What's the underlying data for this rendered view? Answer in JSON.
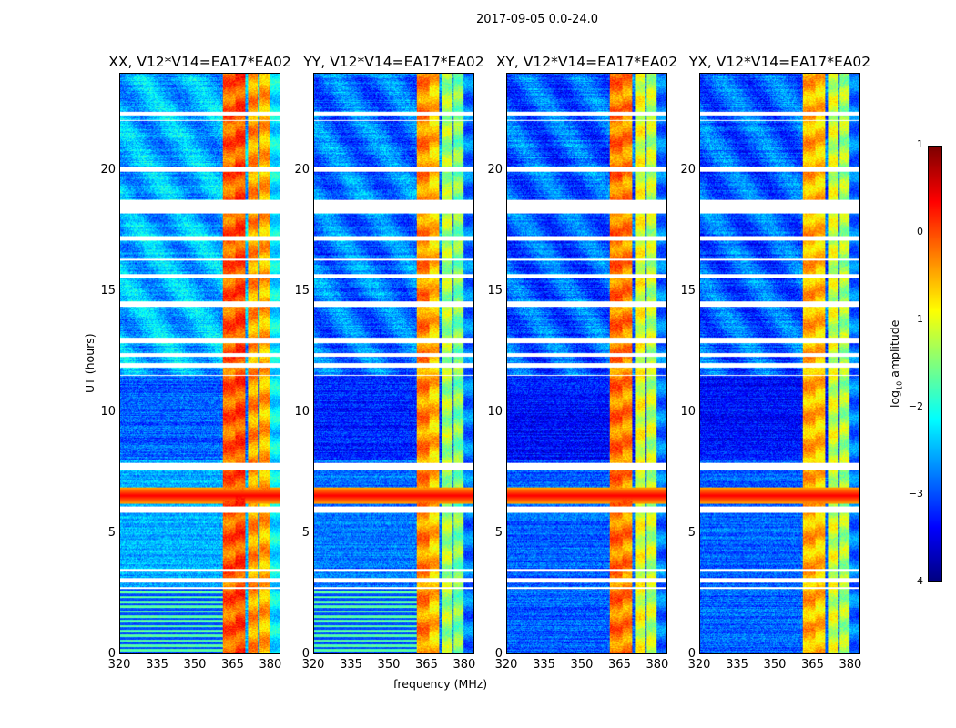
{
  "suptitle": "2017-09-05 0.0-24.0",
  "chart_data": {
    "type": "heatmap",
    "xlabel": "frequency (MHz)",
    "ylabel": "UT (hours)",
    "xlim": [
      320,
      384
    ],
    "ylim": [
      0,
      24
    ],
    "xticks": [
      "320",
      "335",
      "350",
      "365",
      "380"
    ],
    "xtick_values": [
      320,
      335,
      350,
      365,
      380
    ],
    "yticks": [
      "0",
      "5",
      "10",
      "15",
      "20"
    ],
    "ytick_values": [
      0,
      5,
      10,
      15,
      20
    ],
    "colorbar": {
      "label": "log10 amplitude",
      "label_main": "log",
      "label_sub": "10",
      "label_rest": " amplitude",
      "range": [
        -4,
        1
      ],
      "ticks": [
        "1",
        "0",
        "−1",
        "−2",
        "−3",
        "−4"
      ],
      "tick_values": [
        1,
        0,
        -1,
        -2,
        -3,
        -4
      ],
      "colormap": "jet"
    },
    "panels": [
      {
        "title": "XX, V12*V14=EA17*EA02",
        "background": -2.5,
        "low_stripes": true,
        "bands": [
          [
            361,
            366,
            -0.1
          ],
          [
            366,
            370,
            0.0
          ],
          [
            371,
            375,
            -0.4
          ],
          [
            376,
            380,
            -0.5
          ],
          [
            380,
            384,
            -2.2
          ]
        ]
      },
      {
        "title": "YY, V12*V14=EA17*EA02",
        "background": -2.8,
        "low_stripes": true,
        "bands": [
          [
            361,
            366,
            -0.3
          ],
          [
            366,
            370,
            -0.6
          ],
          [
            371,
            375,
            -1.3
          ],
          [
            376,
            380,
            -1.5
          ],
          [
            380,
            384,
            -2.8
          ]
        ]
      },
      {
        "title": "XY, V12*V14=EA17*EA02",
        "background": -2.9,
        "low_stripes": false,
        "bands": [
          [
            361,
            366,
            -0.2
          ],
          [
            366,
            370,
            -0.3
          ],
          [
            371,
            375,
            -1.0
          ],
          [
            376,
            380,
            -1.2
          ],
          [
            380,
            384,
            -2.8
          ]
        ]
      },
      {
        "title": "YX, V12*V14=EA17*EA02",
        "background": -2.9,
        "low_stripes": false,
        "bands": [
          [
            361,
            366,
            -0.5
          ],
          [
            366,
            370,
            -0.6
          ],
          [
            371,
            375,
            -1.1
          ],
          [
            376,
            380,
            -1.3
          ],
          [
            380,
            384,
            -2.8
          ]
        ]
      }
    ],
    "flagged_hours": [
      [
        22.3,
        22.45
      ],
      [
        22.05,
        22.12
      ],
      [
        19.95,
        20.15
      ],
      [
        18.25,
        18.8
      ],
      [
        17.1,
        17.3
      ],
      [
        16.3,
        16.35
      ],
      [
        15.55,
        15.7
      ],
      [
        14.35,
        14.6
      ],
      [
        12.85,
        13.1
      ],
      [
        12.3,
        12.45
      ],
      [
        11.85,
        12.05
      ],
      [
        11.5,
        11.55
      ],
      [
        7.6,
        7.9
      ],
      [
        5.85,
        6.1
      ],
      [
        3.4,
        3.5
      ],
      [
        2.95,
        3.15
      ],
      [
        2.7,
        2.75
      ]
    ],
    "rfi_event_hours": [
      6.2,
      6.9
    ]
  }
}
